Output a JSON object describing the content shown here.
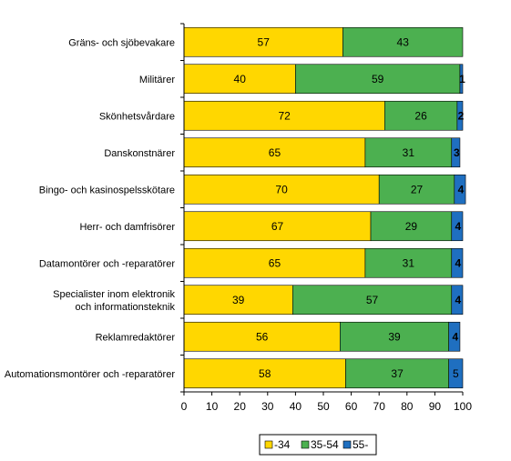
{
  "chart_data": {
    "type": "bar",
    "orientation": "horizontal",
    "stacked": true,
    "categories": [
      [
        "Gräns- och sjöbevakare"
      ],
      [
        "Militärer"
      ],
      [
        "Skönhetsvårdare"
      ],
      [
        "Danskonstnärer"
      ],
      [
        "Bingo- och kasinospelsskötare"
      ],
      [
        "Herr- och damfrisörer"
      ],
      [
        "Datamontörer och -reparatörer"
      ],
      [
        "Specialister inom elektronik",
        "och informationsteknik"
      ],
      [
        "Reklamredaktörer"
      ],
      [
        "Automationsmontörer och -reparatörer"
      ]
    ],
    "series": [
      {
        "name": "-34",
        "color": "#FFD700",
        "values": [
          57,
          40,
          72,
          65,
          70,
          67,
          65,
          39,
          56,
          58
        ]
      },
      {
        "name": "35-54",
        "color": "#4CB050",
        "values": [
          43,
          59,
          26,
          31,
          27,
          29,
          31,
          57,
          39,
          37
        ]
      },
      {
        "name": "55-",
        "color": "#1F6FC0",
        "values": [
          0,
          1,
          2,
          3,
          4,
          4,
          4,
          4,
          4,
          5
        ]
      }
    ],
    "data_labels": [
      [
        "57",
        "43",
        ""
      ],
      [
        "40",
        "59",
        "1"
      ],
      [
        "72",
        "26",
        "2"
      ],
      [
        "65",
        "31",
        "3"
      ],
      [
        "70",
        "27",
        "4"
      ],
      [
        "67",
        "29",
        "4"
      ],
      [
        "65",
        "31",
        "4"
      ],
      [
        "39",
        "57",
        "4"
      ],
      [
        "56",
        "39",
        "4"
      ],
      [
        "58",
        "37",
        "5"
      ]
    ],
    "x_ticks": [
      "0",
      "10",
      "20",
      "30",
      "40",
      "50",
      "60",
      "70",
      "80",
      "90",
      "100"
    ],
    "xlim": [
      0,
      100
    ],
    "grid": false,
    "legend_position": "bottom",
    "title": "",
    "xlabel": "",
    "ylabel": ""
  }
}
